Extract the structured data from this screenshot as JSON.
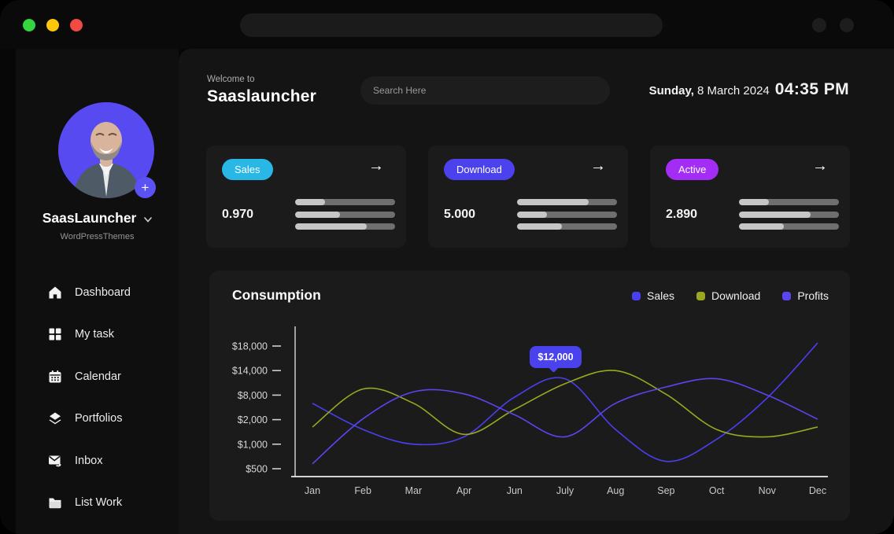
{
  "window": {
    "traffic_lights": [
      "green",
      "yellow",
      "red"
    ]
  },
  "icons": {
    "arrow_right": "→",
    "plus": "+"
  },
  "sidebar": {
    "brand": "SaasLauncher",
    "subtitle": "WordPressThemes",
    "items": [
      {
        "label": "Dashboard",
        "icon": "home-icon"
      },
      {
        "label": "My task",
        "icon": "grid-icon"
      },
      {
        "label": "Calendar",
        "icon": "calendar-icon"
      },
      {
        "label": "Portfolios",
        "icon": "layers-icon"
      },
      {
        "label": "Inbox",
        "icon": "inbox-icon"
      },
      {
        "label": "List Work",
        "icon": "folder-icon"
      }
    ]
  },
  "header": {
    "welcome": "Welcome to",
    "app_name": "Saaslauncher",
    "search_placeholder": "Search Here",
    "date_day": "Sunday,",
    "date_rest": " 8 March 2024",
    "time": "04:35 PM"
  },
  "stats": [
    {
      "badge": "Sales",
      "badge_color": "#29b7e5",
      "value": "0.970",
      "bars": [
        30,
        45,
        72
      ]
    },
    {
      "badge": "Download",
      "badge_color": "#4b42ee",
      "value": "5.000",
      "bars": [
        72,
        30,
        45
      ]
    },
    {
      "badge": "Active",
      "badge_color": "#a42df6",
      "value": "2.890",
      "bars": [
        30,
        72,
        45
      ]
    }
  ],
  "chart_data": {
    "type": "line",
    "title": "Consumption",
    "categories": [
      "Jan",
      "Feb",
      "Mar",
      "Apr",
      "Jun",
      "July",
      "Aug",
      "Sep",
      "Oct",
      "Nov",
      "Dec"
    ],
    "y_tick_labels": [
      "$18,000",
      "$14,000",
      "$8,000",
      "$2,000",
      "$1,000",
      "$500"
    ],
    "y_tick_values": [
      18000,
      14000,
      8000,
      2000,
      1000,
      500
    ],
    "grid": false,
    "legend_position": "top-right",
    "series": [
      {
        "name": "Sales",
        "color": "#4a3ff0",
        "values": [
          6000,
          1600,
          1000,
          1300,
          7500,
          12000,
          1600,
          650,
          1200,
          7300,
          18500
        ]
      },
      {
        "name": "Download",
        "color": "#99a820",
        "values": [
          1700,
          9500,
          6000,
          1400,
          4500,
          10800,
          14000,
          8200,
          1600,
          1300,
          1700
        ]
      },
      {
        "name": "Profits",
        "color": "#5a45f0",
        "values": [
          600,
          2200,
          8800,
          8300,
          3200,
          1300,
          6000,
          10000,
          12000,
          8000,
          2100
        ]
      }
    ],
    "tooltip": {
      "label": "$12,000",
      "series": "Sales",
      "category": "July"
    }
  }
}
